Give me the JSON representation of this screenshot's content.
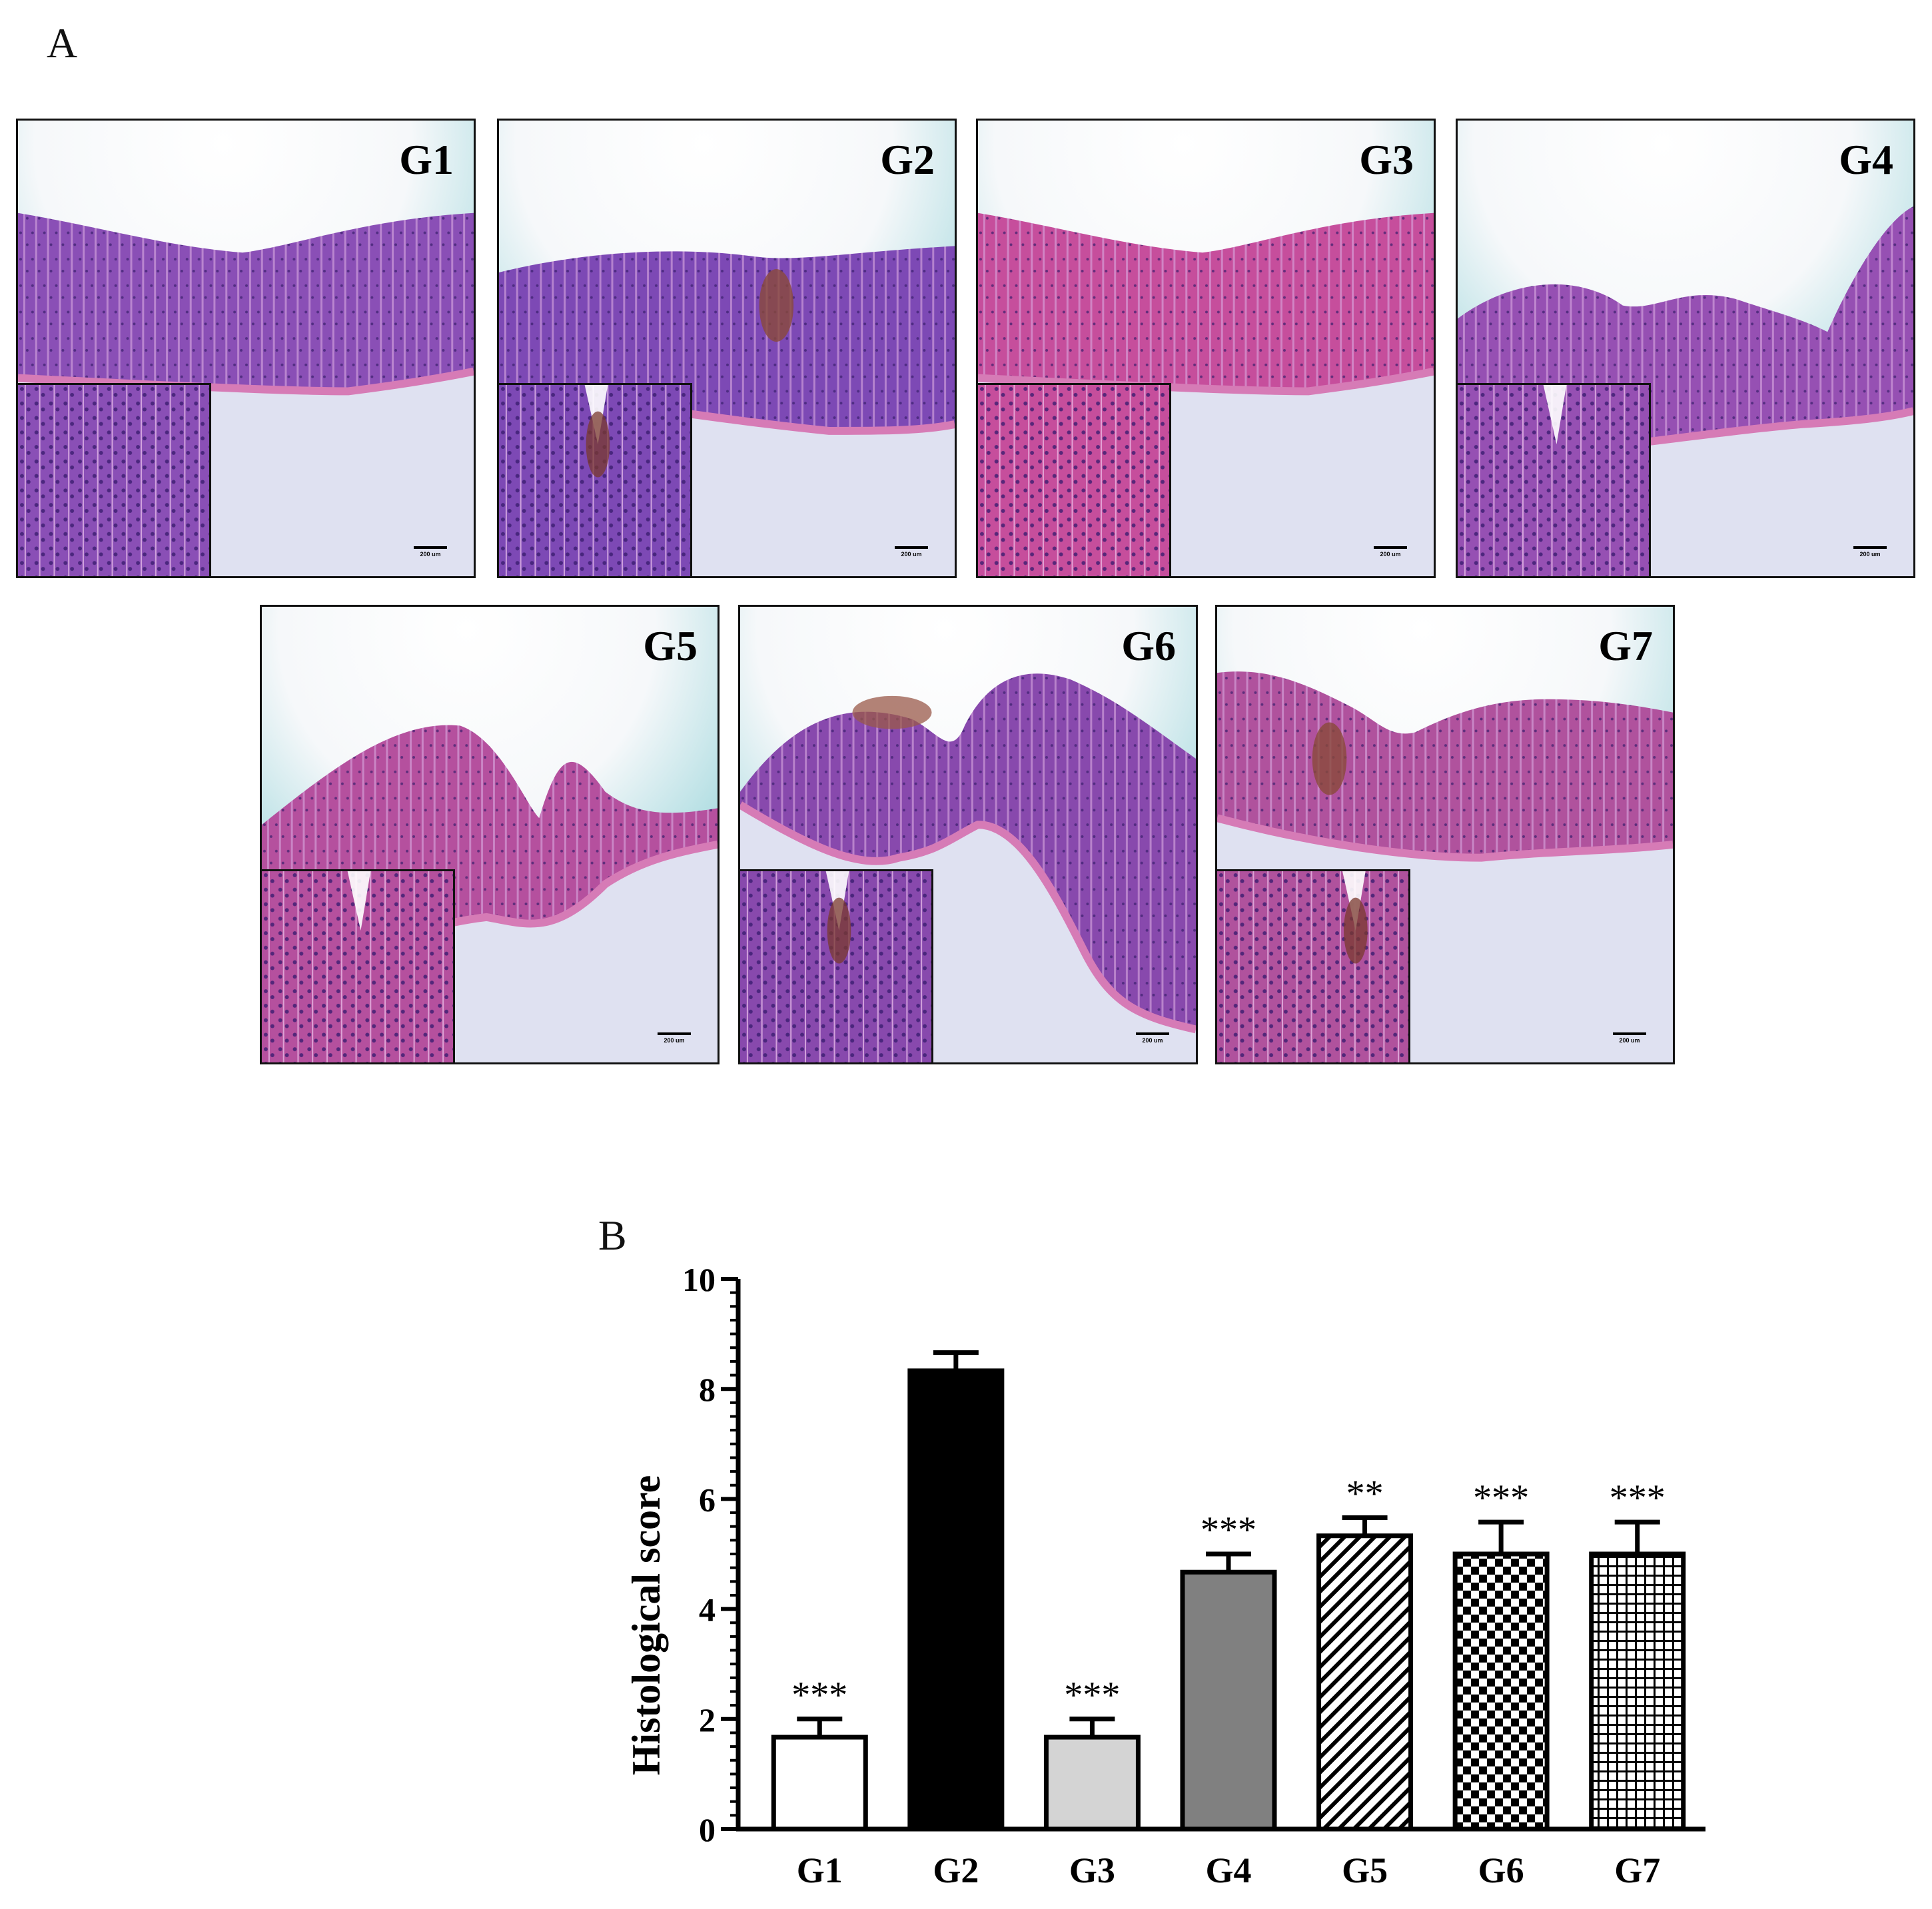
{
  "figure": {
    "panel_a_label": "A",
    "panel_b_label": "B"
  },
  "micrographs": [
    {
      "label": "G1",
      "scale": "200 um",
      "style": "normal",
      "tint": "#8a4fb6"
    },
    {
      "label": "G2",
      "scale": "200 um",
      "style": "lesion",
      "tint": "#7d49b5"
    },
    {
      "label": "G3",
      "scale": "200 um",
      "style": "normal",
      "tint": "#c64e9c"
    },
    {
      "label": "G4",
      "scale": "200 um",
      "style": "notch",
      "tint": "#9650b3"
    },
    {
      "label": "G5",
      "scale": "200 um",
      "style": "fold",
      "tint": "#b5509e"
    },
    {
      "label": "G6",
      "scale": "200 um",
      "style": "arch",
      "tint": "#8849ad"
    },
    {
      "label": "G7",
      "scale": "200 um",
      "style": "spot",
      "tint": "#b0529d"
    }
  ],
  "chart_data": {
    "type": "bar",
    "categories": [
      "G1",
      "G2",
      "G3",
      "G4",
      "G5",
      "G6",
      "G7"
    ],
    "values": [
      1.67,
      8.33,
      1.67,
      4.67,
      5.33,
      5.0,
      5.0
    ],
    "errors": [
      0.33,
      0.33,
      0.33,
      0.33,
      0.33,
      0.58,
      0.58
    ],
    "significance": [
      "***",
      "",
      "***",
      "***",
      "**",
      "***",
      "***"
    ],
    "fills": [
      "white",
      "black",
      "lightgray",
      "gray",
      "diagonal-hatch",
      "checkerboard",
      "grid"
    ],
    "ylabel": "Histological score",
    "ylim": [
      0,
      10
    ],
    "yticks": [
      "0",
      "2",
      "4",
      "6",
      "8",
      "10"
    ],
    "colors": {
      "black": "#000000",
      "lightgray": "#d4d4d4",
      "gray": "#808080"
    }
  }
}
